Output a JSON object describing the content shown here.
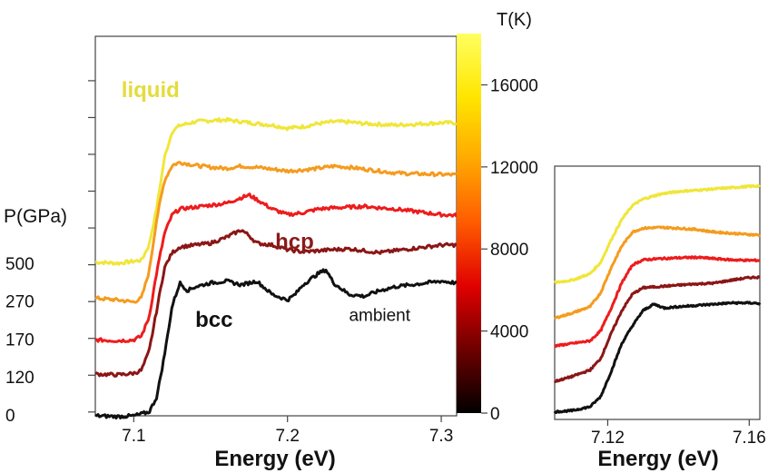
{
  "colors": {
    "liquid": "#e8e83a",
    "p500": "#f0e63a",
    "p270": "#f59b1e",
    "p170": "#ee1c1c",
    "p120": "#8b1616",
    "p0": "#111111",
    "hcp_label": "#8b1a1a",
    "liquid_label": "#e4dc3c"
  },
  "colorbar": {
    "title": "T(K)",
    "range": [
      0,
      18500
    ],
    "ticks": [
      0,
      4000,
      8000,
      12000,
      16000
    ],
    "tick_labels": [
      "0",
      "4000",
      "8000",
      "12000",
      "16000"
    ],
    "gradient_stops": [
      "#000000",
      "#6e0000",
      "#e00000",
      "#ff5a00",
      "#ffa800",
      "#ffe600",
      "#ffff60"
    ]
  },
  "chart_data": [
    {
      "type": "line",
      "name": "main",
      "xlabel": "Energy (eV)",
      "ylabel": "P(GPa)",
      "xlim": [
        7.075,
        7.31
      ],
      "ylim": [
        0,
        10
      ],
      "xticks": [
        7.1,
        7.2,
        7.3
      ],
      "xtick_labels": [
        "7.1",
        "7.2",
        "7.3"
      ],
      "yticks": [
        0.0,
        1.0,
        2.0,
        3.0,
        4.0
      ],
      "ytick_labels": [
        "0",
        "120",
        "170",
        "270",
        "500"
      ],
      "annotations": [
        {
          "text": "liquid",
          "x": 7.092,
          "y": 8.4
        },
        {
          "text": "hcp",
          "x": 7.192,
          "y": 4.4
        },
        {
          "text": "bcc",
          "x": 7.14,
          "y": 2.35
        },
        {
          "text": "ambient",
          "x": 7.24,
          "y": 2.5
        }
      ],
      "series": [
        {
          "pressure": "500",
          "x": [
            7.075,
            7.09,
            7.105,
            7.11,
            7.115,
            7.12,
            7.125,
            7.13,
            7.14,
            7.15,
            7.16,
            7.17,
            7.18,
            7.19,
            7.2,
            7.21,
            7.22,
            7.23,
            7.24,
            7.25,
            7.26,
            7.27,
            7.28,
            7.29,
            7.3,
            7.31
          ],
          "y": [
            4.05,
            4.02,
            4.1,
            4.5,
            5.5,
            6.8,
            7.5,
            7.65,
            7.75,
            7.78,
            7.8,
            7.75,
            7.7,
            7.66,
            7.58,
            7.62,
            7.7,
            7.75,
            7.74,
            7.7,
            7.68,
            7.66,
            7.68,
            7.7,
            7.72,
            7.72
          ]
        },
        {
          "pressure": "270",
          "x": [
            7.075,
            7.09,
            7.1,
            7.105,
            7.11,
            7.115,
            7.12,
            7.125,
            7.13,
            7.14,
            7.15,
            7.16,
            7.17,
            7.18,
            7.19,
            7.2,
            7.21,
            7.22,
            7.23,
            7.24,
            7.25,
            7.26,
            7.27,
            7.28,
            7.29,
            7.3,
            7.31
          ],
          "y": [
            3.1,
            3.05,
            3.0,
            3.1,
            3.8,
            5.2,
            6.2,
            6.6,
            6.68,
            6.6,
            6.55,
            6.52,
            6.58,
            6.55,
            6.5,
            6.45,
            6.48,
            6.52,
            6.58,
            6.55,
            6.5,
            6.45,
            6.4,
            6.38,
            6.37,
            6.36,
            6.35
          ]
        },
        {
          "pressure": "170",
          "x": [
            7.075,
            7.09,
            7.1,
            7.105,
            7.11,
            7.115,
            7.12,
            7.125,
            7.13,
            7.14,
            7.15,
            7.16,
            7.17,
            7.175,
            7.18,
            7.19,
            7.2,
            7.21,
            7.22,
            7.23,
            7.24,
            7.25,
            7.26,
            7.27,
            7.28,
            7.29,
            7.3,
            7.31
          ],
          "y": [
            2.0,
            1.98,
            2.0,
            2.1,
            2.6,
            3.8,
            4.8,
            5.3,
            5.45,
            5.5,
            5.55,
            5.6,
            5.75,
            5.82,
            5.7,
            5.45,
            5.3,
            5.35,
            5.45,
            5.48,
            5.5,
            5.52,
            5.48,
            5.45,
            5.4,
            5.35,
            5.3,
            5.28
          ]
        },
        {
          "pressure": "120",
          "x": [
            7.075,
            7.09,
            7.1,
            7.105,
            7.11,
            7.115,
            7.12,
            7.125,
            7.13,
            7.14,
            7.15,
            7.16,
            7.17,
            7.175,
            7.18,
            7.19,
            7.2,
            7.21,
            7.22,
            7.23,
            7.24,
            7.25,
            7.26,
            7.27,
            7.28,
            7.29,
            7.3,
            7.31
          ],
          "y": [
            1.1,
            1.08,
            1.12,
            1.2,
            1.7,
            2.8,
            3.9,
            4.3,
            4.45,
            4.5,
            4.55,
            4.7,
            4.9,
            4.75,
            4.55,
            4.5,
            4.38,
            4.32,
            4.35,
            4.38,
            4.4,
            4.35,
            4.3,
            4.35,
            4.4,
            4.45,
            4.5,
            4.5
          ]
        },
        {
          "pressure": "0",
          "x": [
            7.075,
            7.09,
            7.1,
            7.11,
            7.115,
            7.12,
            7.125,
            7.13,
            7.135,
            7.14,
            7.15,
            7.16,
            7.17,
            7.18,
            7.19,
            7.2,
            7.205,
            7.21,
            7.22,
            7.225,
            7.23,
            7.24,
            7.25,
            7.26,
            7.27,
            7.28,
            7.29,
            7.3,
            7.31
          ],
          "y": [
            0.0,
            -0.02,
            0.0,
            0.1,
            0.5,
            1.6,
            2.9,
            3.5,
            3.3,
            3.4,
            3.5,
            3.55,
            3.45,
            3.55,
            3.2,
            3.05,
            3.2,
            3.45,
            3.75,
            3.85,
            3.5,
            3.2,
            3.15,
            3.3,
            3.4,
            3.45,
            3.5,
            3.55,
            3.5
          ]
        }
      ]
    },
    {
      "type": "line",
      "name": "inset",
      "xlabel": "Energy (eV)",
      "xlim": [
        7.105,
        7.163
      ],
      "ylim": [
        0,
        10
      ],
      "xticks": [
        7.12,
        7.16
      ],
      "xtick_labels": [
        "7.12",
        "7.16"
      ],
      "series": [
        {
          "pressure": "500",
          "x": [
            7.105,
            7.11,
            7.115,
            7.118,
            7.121,
            7.124,
            7.127,
            7.13,
            7.135,
            7.14,
            7.145,
            7.15,
            7.155,
            7.16,
            7.163
          ],
          "y": [
            5.4,
            5.5,
            5.75,
            6.2,
            7.1,
            7.9,
            8.45,
            8.7,
            8.9,
            9.0,
            9.05,
            9.1,
            9.15,
            9.2,
            9.22
          ]
        },
        {
          "pressure": "270",
          "x": [
            7.105,
            7.11,
            7.115,
            7.118,
            7.121,
            7.124,
            7.127,
            7.13,
            7.135,
            7.14,
            7.145,
            7.15,
            7.155,
            7.16,
            7.163
          ],
          "y": [
            4.0,
            4.2,
            4.45,
            5.0,
            6.0,
            6.85,
            7.4,
            7.55,
            7.58,
            7.55,
            7.5,
            7.4,
            7.35,
            7.3,
            7.28
          ]
        },
        {
          "pressure": "170",
          "x": [
            7.105,
            7.11,
            7.115,
            7.118,
            7.121,
            7.124,
            7.127,
            7.13,
            7.135,
            7.14,
            7.145,
            7.15,
            7.155,
            7.16,
            7.163
          ],
          "y": [
            2.9,
            3.0,
            3.1,
            3.5,
            4.4,
            5.4,
            6.1,
            6.3,
            6.35,
            6.38,
            6.4,
            6.35,
            6.3,
            6.28,
            6.28
          ]
        },
        {
          "pressure": "120",
          "x": [
            7.105,
            7.11,
            7.115,
            7.118,
            7.121,
            7.124,
            7.127,
            7.13,
            7.135,
            7.14,
            7.145,
            7.15,
            7.155,
            7.16,
            7.163
          ],
          "y": [
            1.5,
            1.7,
            1.95,
            2.4,
            3.4,
            4.3,
            4.95,
            5.2,
            5.25,
            5.3,
            5.35,
            5.38,
            5.5,
            5.6,
            5.62
          ]
        },
        {
          "pressure": "0",
          "x": [
            7.105,
            7.11,
            7.115,
            7.118,
            7.121,
            7.124,
            7.127,
            7.13,
            7.133,
            7.136,
            7.14,
            7.145,
            7.15,
            7.155,
            7.16,
            7.163
          ],
          "y": [
            0.3,
            0.35,
            0.5,
            0.9,
            1.9,
            3.0,
            3.7,
            4.3,
            4.55,
            4.4,
            4.45,
            4.5,
            4.55,
            4.6,
            4.6,
            4.58
          ]
        }
      ]
    }
  ]
}
